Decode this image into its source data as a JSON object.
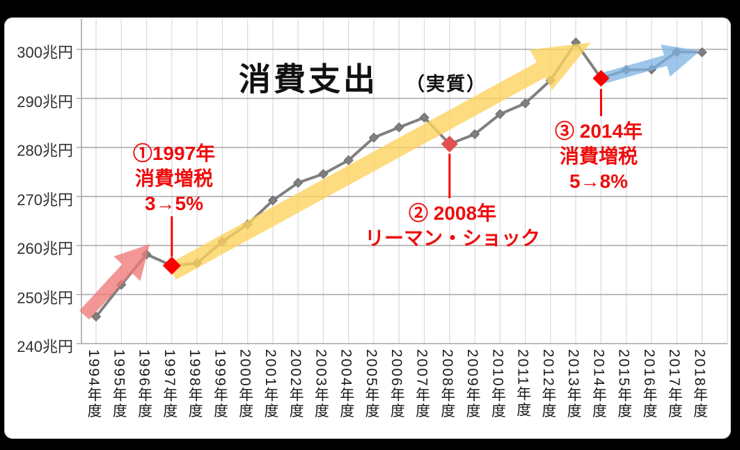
{
  "colors": {
    "background": "#000000",
    "chart_bg": "#ffffff",
    "chart_border": "#c3c3c3",
    "series_line": "#808080",
    "marker_fill": "#7f7f7f",
    "marker_stroke": "#6b6b6b",
    "grid_horizontal": "#a6a6a6",
    "grid_vertical": "#d9d9d9",
    "axis": "#a6a6a6",
    "annotation_red": "#ee0d0d",
    "highlight_red": "#fb0000",
    "lehman_red": "#e25050",
    "arrow_pink": "rgba(239,120,120,0.78)",
    "arrow_yellow": "rgba(252,211,95,0.8)",
    "arrow_blue": "rgba(126,179,227,0.75)"
  },
  "chart_data": {
    "type": "line",
    "title": "消費支出",
    "subtitle": "（実質）",
    "unit": "兆円",
    "categories": [
      "1994年度",
      "1995年度",
      "1996年度",
      "1997年度",
      "1998年度",
      "1999年度",
      "2000年度",
      "2001年度",
      "2002年度",
      "2003年度",
      "2004年度",
      "2005年度",
      "2006年度",
      "2007年度",
      "2008年度",
      "2009年度",
      "2010年度",
      "2011年度",
      "2012年度",
      "2013年度",
      "2014年度",
      "2015年度",
      "2016年度",
      "2017年度",
      "2018年度"
    ],
    "series": [
      {
        "name": "消費支出（実質）",
        "values": [
          245.5,
          252.0,
          258.2,
          255.9,
          256.4,
          260.8,
          264.3,
          269.2,
          272.8,
          274.6,
          277.4,
          282.0,
          284.1,
          286.1,
          280.7,
          282.7,
          286.8,
          289.0,
          293.7,
          301.4,
          294.1,
          295.8,
          295.9,
          299.5,
          299.4
        ]
      }
    ],
    "ylim": [
      240,
      306
    ],
    "yticks": [
      240,
      250,
      260,
      270,
      280,
      290,
      300
    ],
    "ytick_labels": [
      "240兆円",
      "250兆円",
      "260兆円",
      "270兆円",
      "280兆円",
      "290兆円",
      "300兆円"
    ],
    "grid": true,
    "legend": false,
    "highlight_points": [
      {
        "category": "1997年度",
        "value": 255.9,
        "color_key": "highlight_red",
        "note": "①1997年 消費増税 3→5%"
      },
      {
        "category": "2008年度",
        "value": 280.7,
        "color_key": "lehman_red",
        "note": "② 2008年 リーマン・ショック"
      },
      {
        "category": "2014年度",
        "value": 294.1,
        "color_key": "highlight_red",
        "note": "③ 2014年 消費増税 5→8%"
      }
    ],
    "trend_arrows": [
      {
        "span": "1994年度→1996年度",
        "color_key": "arrow_pink"
      },
      {
        "span": "1997年度→2013年度",
        "color_key": "arrow_yellow"
      },
      {
        "span": "2014年度→2018年度",
        "color_key": "arrow_blue"
      }
    ]
  },
  "annotations": [
    {
      "id": "tax1997",
      "lines": [
        "①1997年",
        "消費増税",
        "3→5%"
      ]
    },
    {
      "id": "lehman2008",
      "lines": [
        "② 2008年",
        "リーマン・ショック"
      ]
    },
    {
      "id": "tax2014",
      "lines": [
        "③ 2014年",
        "消費増税",
        "5→8%"
      ]
    }
  ]
}
